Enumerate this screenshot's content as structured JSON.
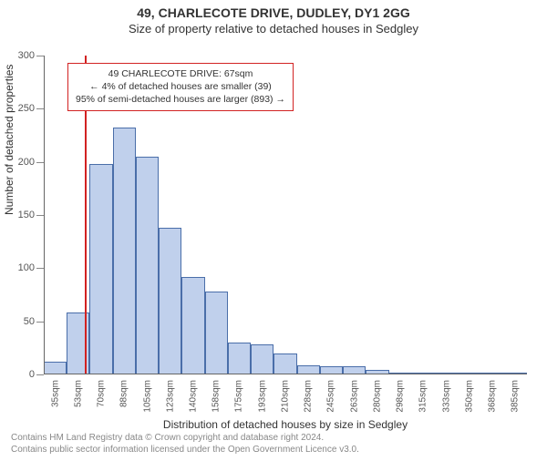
{
  "title": "49, CHARLECOTE DRIVE, DUDLEY, DY1 2GG",
  "subtitle": "Size of property relative to detached houses in Sedgley",
  "chart": {
    "type": "histogram",
    "ylabel": "Number of detached properties",
    "xlabel": "Distribution of detached houses by size in Sedgley",
    "ylim": [
      0,
      300
    ],
    "ytick_step": 50,
    "yticks": [
      0,
      50,
      100,
      150,
      200,
      250,
      300
    ],
    "bar_color": "#c0d0ec",
    "bar_border_color": "#4a6ea9",
    "axis_color": "#666666",
    "tick_label_color": "#555555",
    "background_color": "#ffffff",
    "marker_value": 67,
    "marker_color": "#d22222",
    "bins": [
      {
        "label": "35sqm",
        "value": 12
      },
      {
        "label": "53sqm",
        "value": 58
      },
      {
        "label": "70sqm",
        "value": 198
      },
      {
        "label": "88sqm",
        "value": 232
      },
      {
        "label": "105sqm",
        "value": 205
      },
      {
        "label": "123sqm",
        "value": 138
      },
      {
        "label": "140sqm",
        "value": 92
      },
      {
        "label": "158sqm",
        "value": 78
      },
      {
        "label": "175sqm",
        "value": 30
      },
      {
        "label": "193sqm",
        "value": 28
      },
      {
        "label": "210sqm",
        "value": 20
      },
      {
        "label": "228sqm",
        "value": 9
      },
      {
        "label": "245sqm",
        "value": 8
      },
      {
        "label": "263sqm",
        "value": 8
      },
      {
        "label": "280sqm",
        "value": 4
      },
      {
        "label": "298sqm",
        "value": 1
      },
      {
        "label": "315sqm",
        "value": 2
      },
      {
        "label": "333sqm",
        "value": 2
      },
      {
        "label": "350sqm",
        "value": 1
      },
      {
        "label": "368sqm",
        "value": 1
      },
      {
        "label": "385sqm",
        "value": 1
      }
    ],
    "title_fontsize": 14,
    "subtitle_fontsize": 13,
    "label_fontsize": 12,
    "tick_fontsize": 10
  },
  "annotation": {
    "line1": "49 CHARLECOTE DRIVE: 67sqm",
    "line2": "← 4% of detached houses are smaller (39)",
    "line3": "95% of semi-detached houses are larger (893) →",
    "border_color": "#d22222",
    "background_color": "#ffffff",
    "fontsize": 10.5
  },
  "footer": {
    "line1": "Contains HM Land Registry data © Crown copyright and database right 2024.",
    "line2": "Contains public sector information licensed under the Open Government Licence v3.0.",
    "color": "#888888"
  }
}
